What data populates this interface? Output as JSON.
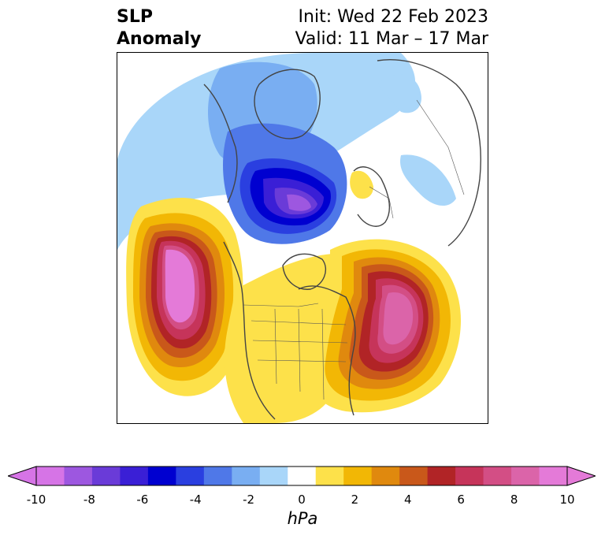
{
  "title": {
    "variable_line1": "SLP",
    "variable_line2": "Anomaly",
    "init": "Init: Wed 22 Feb 2023",
    "valid": "Valid: 11 Mar – 17 Mar"
  },
  "colorbar": {
    "unit": "hPa",
    "ticks": [
      "-10",
      "-8",
      "-6",
      "-4",
      "-2",
      "0",
      "2",
      "4",
      "6",
      "8",
      "10"
    ],
    "levels": [
      -10,
      -9,
      -8,
      -7,
      -6,
      -5,
      -4,
      -3,
      -2,
      -1,
      1,
      2,
      3,
      4,
      5,
      6,
      7,
      8,
      9,
      10
    ],
    "colors": [
      "#d674e6",
      "#9d57e0",
      "#6a3bd8",
      "#3a1fd6",
      "#0000d0",
      "#2a3fe0",
      "#4f78e8",
      "#79aef2",
      "#a9d6f9",
      "#ffffff",
      "#fde14a",
      "#f2b705",
      "#e0890e",
      "#c9581a",
      "#b12426",
      "#c6345a",
      "#d34e85",
      "#db64a9",
      "#e47ad8"
    ],
    "under_color": "#d674e6",
    "over_color": "#e47ad8"
  },
  "map": {
    "projection": "north-polar-stereographic",
    "features": {
      "low_center_hudson_bay": -10,
      "high_center_north_pacific": 10,
      "high_center_north_atlantic": 9,
      "weak_high_scandinavia": 1
    }
  }
}
